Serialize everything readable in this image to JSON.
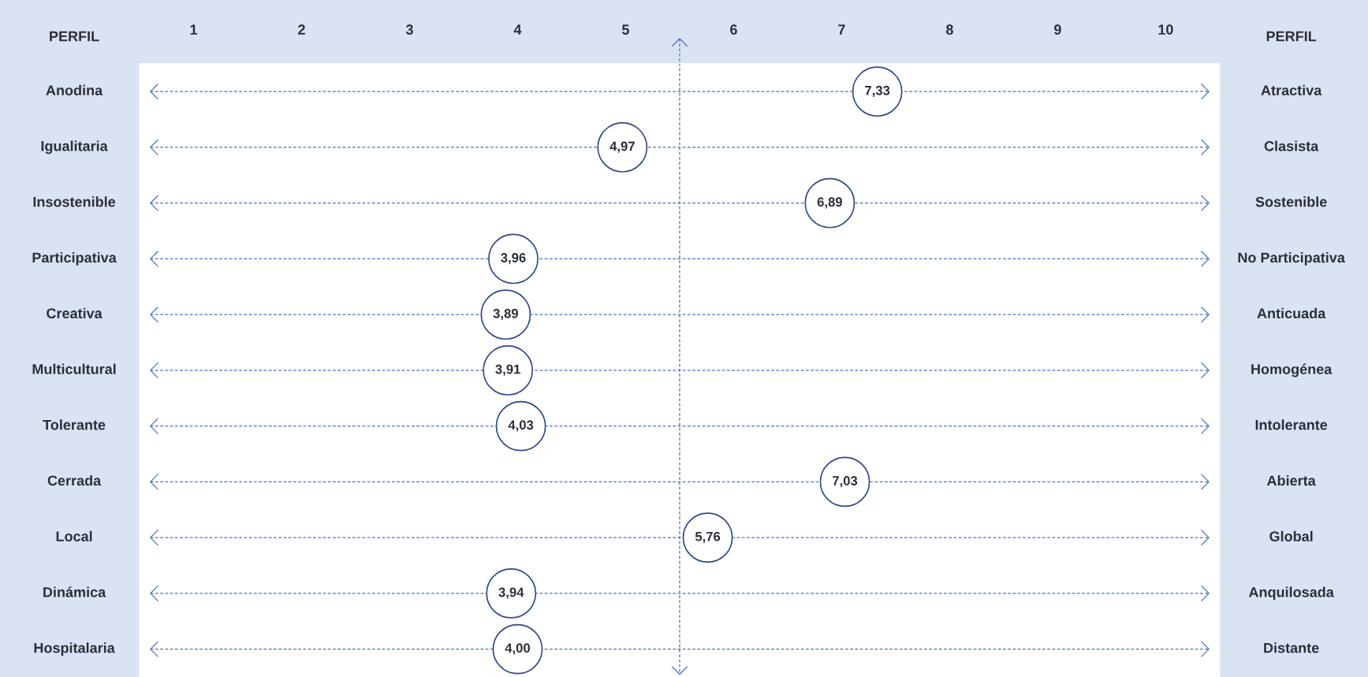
{
  "chart_data": {
    "type": "scatter",
    "orientation": "horizontal",
    "ylabel": "PERFIL",
    "y2label": "PERFIL",
    "categories": [
      "Anodina",
      "Igualitaria",
      "Insostenible",
      "Participativa",
      "Creativa",
      "Multicultural",
      "Tolerante",
      "Cerrada",
      "Local",
      "Dinámica",
      "Hospitalaria"
    ],
    "y2_categories": [
      "Atractiva",
      "Clasista",
      "Sostenible",
      "No Participativa",
      "Anticuada",
      "Homogénea",
      "Intolerante",
      "Abierta",
      "Global",
      "Anquilosada",
      "Distante"
    ],
    "values": [
      7.33,
      4.97,
      6.89,
      3.96,
      3.89,
      3.91,
      4.03,
      7.03,
      5.76,
      3.94,
      4.0
    ],
    "value_labels": [
      "7,33",
      "4,97",
      "6,89",
      "3,96",
      "3,89",
      "3,91",
      "4,03",
      "7,03",
      "5,76",
      "3,94",
      "4,00"
    ],
    "color": "#2f4a8a",
    "xlim": [
      0.5,
      10.5
    ],
    "xticks": [
      1,
      2,
      3,
      4,
      5,
      6,
      7,
      8,
      9,
      10
    ],
    "grid": "y",
    "line_style": "dashed",
    "marker": "circle",
    "ref_lines": [
      {
        "axis": "x",
        "value": 5.5,
        "label": null,
        "color": "#4472c4",
        "line_style": "dashed"
      }
    ]
  }
}
